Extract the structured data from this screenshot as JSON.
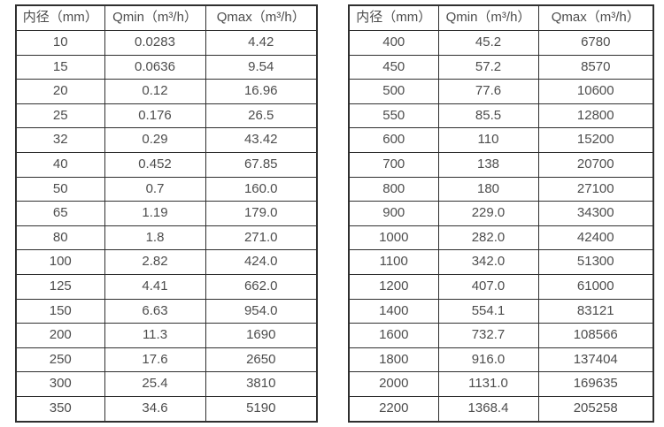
{
  "page": {
    "background_color": "#ffffff",
    "border_color": "#2f2f2f",
    "text_color": "#4d4d4d"
  },
  "tables": [
    {
      "id": "flow-table-left",
      "headers": [
        "内径（mm）",
        "Qmin（m³/h）",
        "Qmax（m³/h）"
      ],
      "rows": [
        [
          "10",
          "0.0283",
          "4.42"
        ],
        [
          "15",
          "0.0636",
          "9.54"
        ],
        [
          "20",
          "0.12",
          "16.96"
        ],
        [
          "25",
          "0.176",
          "26.5"
        ],
        [
          "32",
          "0.29",
          "43.42"
        ],
        [
          "40",
          "0.452",
          "67.85"
        ],
        [
          "50",
          "0.7",
          "160.0"
        ],
        [
          "65",
          "1.19",
          "179.0"
        ],
        [
          "80",
          "1.8",
          "271.0"
        ],
        [
          "100",
          "2.82",
          "424.0"
        ],
        [
          "125",
          "4.41",
          "662.0"
        ],
        [
          "150",
          "6.63",
          "954.0"
        ],
        [
          "200",
          "11.3",
          "1690"
        ],
        [
          "250",
          "17.6",
          "2650"
        ],
        [
          "300",
          "25.4",
          "3810"
        ],
        [
          "350",
          "34.6",
          "5190"
        ]
      ]
    },
    {
      "id": "flow-table-right",
      "headers": [
        "内径（mm）",
        "Qmin（m³/h）",
        "Qmax（m³/h）"
      ],
      "rows": [
        [
          "400",
          "45.2",
          "6780"
        ],
        [
          "450",
          "57.2",
          "8570"
        ],
        [
          "500",
          "77.6",
          "10600"
        ],
        [
          "550",
          "85.5",
          "12800"
        ],
        [
          "600",
          "110",
          "15200"
        ],
        [
          "700",
          "138",
          "20700"
        ],
        [
          "800",
          "180",
          "27100"
        ],
        [
          "900",
          "229.0",
          "34300"
        ],
        [
          "1000",
          "282.0",
          "42400"
        ],
        [
          "1100",
          "342.0",
          "51300"
        ],
        [
          "1200",
          "407.0",
          "61000"
        ],
        [
          "1400",
          "554.1",
          "83121"
        ],
        [
          "1600",
          "732.7",
          "108566"
        ],
        [
          "1800",
          "916.0",
          "137404"
        ],
        [
          "2000",
          "1131.0",
          "169635"
        ],
        [
          "2200",
          "1368.4",
          "205258"
        ]
      ]
    }
  ]
}
